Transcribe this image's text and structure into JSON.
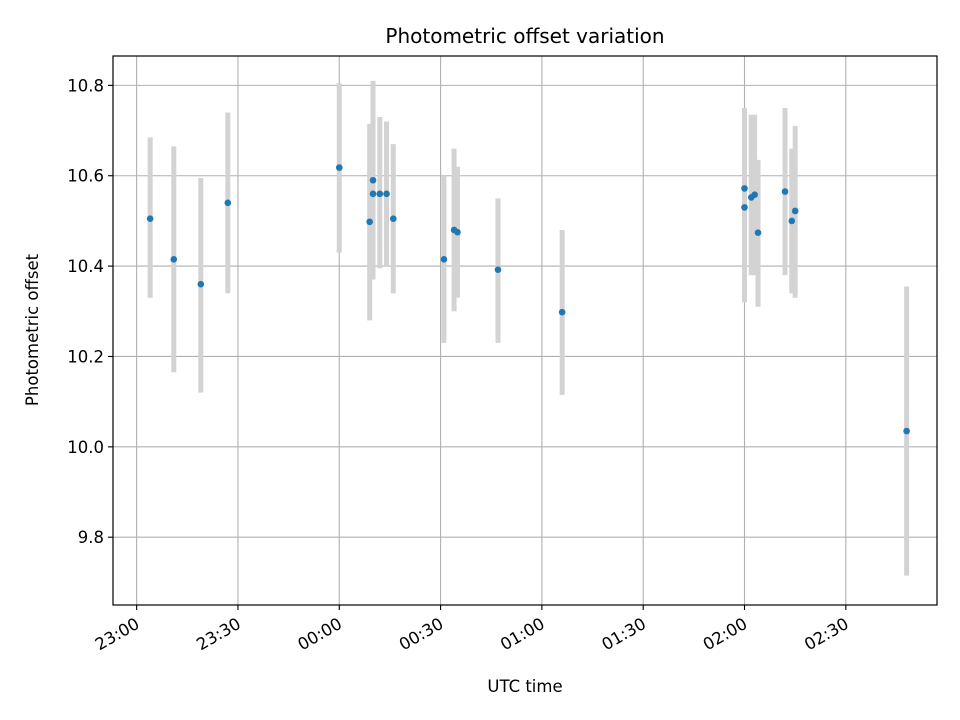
{
  "chart_data": {
    "type": "scatter",
    "title": "Photometric offset variation",
    "xlabel": "UTC time",
    "ylabel": "Photometric offset",
    "x_ticks": [
      "23:00",
      "23:30",
      "00:00",
      "00:30",
      "01:00",
      "01:30",
      "02:00",
      "02:30"
    ],
    "y_ticks": [
      "9.8",
      "10.0",
      "10.2",
      "10.4",
      "10.6",
      "10.8"
    ],
    "xlim": [
      "22:53",
      "02:57"
    ],
    "ylim": [
      9.65,
      10.865
    ],
    "grid": true,
    "marker_color": "#1f77b4",
    "errorbar_color": "#d3d3d3",
    "points": [
      {
        "time": "23:04",
        "offset": 10.505,
        "lo": 10.33,
        "hi": 10.685
      },
      {
        "time": "23:11",
        "offset": 10.415,
        "lo": 10.165,
        "hi": 10.665
      },
      {
        "time": "23:19",
        "offset": 10.36,
        "lo": 10.12,
        "hi": 10.595
      },
      {
        "time": "23:27",
        "offset": 10.54,
        "lo": 10.34,
        "hi": 10.74
      },
      {
        "time": "00:00",
        "offset": 10.618,
        "lo": 10.43,
        "hi": 10.805
      },
      {
        "time": "00:09",
        "offset": 10.498,
        "lo": 10.28,
        "hi": 10.715
      },
      {
        "time": "00:10",
        "offset": 10.59,
        "lo": 10.37,
        "hi": 10.81
      },
      {
        "time": "00:10",
        "offset": 10.56,
        "lo": 10.385,
        "hi": 10.735
      },
      {
        "time": "00:12",
        "offset": 10.56,
        "lo": 10.395,
        "hi": 10.73
      },
      {
        "time": "00:14",
        "offset": 10.56,
        "lo": 10.4,
        "hi": 10.72
      },
      {
        "time": "00:16",
        "offset": 10.505,
        "lo": 10.34,
        "hi": 10.67
      },
      {
        "time": "00:31",
        "offset": 10.415,
        "lo": 10.23,
        "hi": 10.6
      },
      {
        "time": "00:34",
        "offset": 10.48,
        "lo": 10.3,
        "hi": 10.66
      },
      {
        "time": "00:35",
        "offset": 10.475,
        "lo": 10.33,
        "hi": 10.62
      },
      {
        "time": "00:47",
        "offset": 10.392,
        "lo": 10.23,
        "hi": 10.55
      },
      {
        "time": "01:06",
        "offset": 10.298,
        "lo": 10.115,
        "hi": 10.48
      },
      {
        "time": "02:00",
        "offset": 10.572,
        "lo": 10.39,
        "hi": 10.75
      },
      {
        "time": "02:00",
        "offset": 10.53,
        "lo": 10.32,
        "hi": 10.74
      },
      {
        "time": "02:02",
        "offset": 10.552,
        "lo": 10.38,
        "hi": 10.735
      },
      {
        "time": "02:03",
        "offset": 10.558,
        "lo": 10.38,
        "hi": 10.735
      },
      {
        "time": "02:04",
        "offset": 10.474,
        "lo": 10.31,
        "hi": 10.635
      },
      {
        "time": "02:12",
        "offset": 10.565,
        "lo": 10.38,
        "hi": 10.75
      },
      {
        "time": "02:14",
        "offset": 10.5,
        "lo": 10.34,
        "hi": 10.66
      },
      {
        "time": "02:15",
        "offset": 10.522,
        "lo": 10.33,
        "hi": 10.71
      },
      {
        "time": "02:48",
        "offset": 10.035,
        "lo": 9.715,
        "hi": 10.355
      }
    ]
  }
}
